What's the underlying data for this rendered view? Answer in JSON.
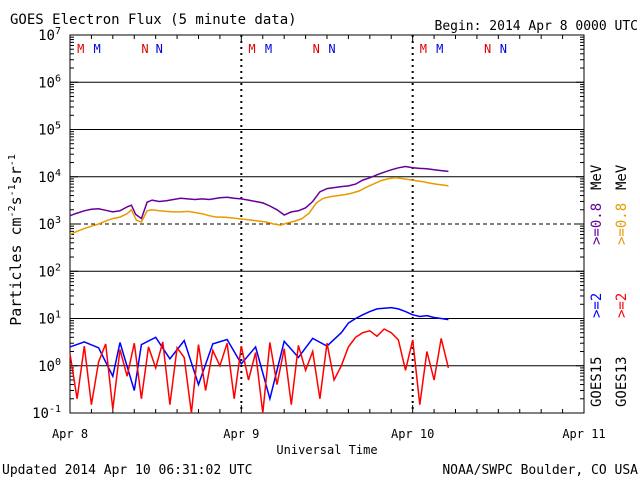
{
  "chart_data": {
    "type": "line",
    "title": "GOES Electron Flux (5 minute data)",
    "begin": "Begin: 2014 Apr 8 0000 UTC",
    "xlabel": "Universal Time",
    "ylabel_parts": [
      "Particles cm",
      "-2",
      "s",
      "-1",
      "sr",
      "-1"
    ],
    "y_scale": "log",
    "ylim": [
      0.1,
      10000000
    ],
    "y_ticks": [
      {
        "base": "10",
        "exp": "-1"
      },
      {
        "base": "10",
        "exp": "0"
      },
      {
        "base": "10",
        "exp": "1"
      },
      {
        "base": "10",
        "exp": "2"
      },
      {
        "base": "10",
        "exp": "3"
      },
      {
        "base": "10",
        "exp": "4"
      },
      {
        "base": "10",
        "exp": "5"
      },
      {
        "base": "10",
        "exp": "6"
      },
      {
        "base": "10",
        "exp": "7"
      }
    ],
    "x_range_hours": [
      0,
      72
    ],
    "x_ticks": [
      "Apr 8",
      "Apr 9",
      "Apr 10",
      "Apr 11"
    ],
    "grid": true,
    "threshold_flux": 1000,
    "markers": [
      {
        "label": "M",
        "hour": 1.5,
        "color": "#dd0000"
      },
      {
        "label": "M",
        "hour": 3.8,
        "color": "#0000dd"
      },
      {
        "label": "N",
        "hour": 10.5,
        "color": "#dd0000"
      },
      {
        "label": "N",
        "hour": 12.5,
        "color": "#0000dd"
      },
      {
        "label": "M",
        "hour": 25.5,
        "color": "#dd0000"
      },
      {
        "label": "M",
        "hour": 27.8,
        "color": "#0000dd"
      },
      {
        "label": "N",
        "hour": 34.5,
        "color": "#dd0000"
      },
      {
        "label": "N",
        "hour": 36.7,
        "color": "#0000dd"
      },
      {
        "label": "M",
        "hour": 49.5,
        "color": "#dd0000"
      },
      {
        "label": "M",
        "hour": 51.8,
        "color": "#0000dd"
      },
      {
        "label": "N",
        "hour": 58.5,
        "color": "#dd0000"
      },
      {
        "label": "N",
        "hour": 60.7,
        "color": "#0000dd"
      }
    ],
    "series": [
      {
        "name": "GOES15 >=0.8 MeV",
        "color": "#660099",
        "points": [
          [
            0,
            1500
          ],
          [
            1,
            1700
          ],
          [
            2,
            1900
          ],
          [
            3,
            2050
          ],
          [
            4,
            2100
          ],
          [
            5,
            1950
          ],
          [
            6,
            1800
          ],
          [
            7,
            1900
          ],
          [
            8,
            2300
          ],
          [
            8.6,
            2500
          ],
          [
            9.2,
            1600
          ],
          [
            10,
            1300
          ],
          [
            10.8,
            2900
          ],
          [
            11.5,
            3200
          ],
          [
            12.5,
            3000
          ],
          [
            13.5,
            3100
          ],
          [
            14.5,
            3300
          ],
          [
            15.5,
            3500
          ],
          [
            16.5,
            3400
          ],
          [
            17.5,
            3300
          ],
          [
            18.5,
            3400
          ],
          [
            19.5,
            3300
          ],
          [
            21,
            3600
          ],
          [
            22,
            3700
          ],
          [
            23,
            3500
          ],
          [
            24,
            3400
          ],
          [
            25,
            3200
          ],
          [
            26,
            3000
          ],
          [
            27,
            2800
          ],
          [
            28,
            2400
          ],
          [
            29,
            2000
          ],
          [
            30,
            1550
          ],
          [
            31,
            1800
          ],
          [
            32,
            1900
          ],
          [
            33,
            2200
          ],
          [
            34,
            3000
          ],
          [
            35,
            4800
          ],
          [
            36,
            5600
          ],
          [
            37,
            5900
          ],
          [
            38,
            6200
          ],
          [
            39,
            6400
          ],
          [
            40,
            7000
          ],
          [
            41,
            8500
          ],
          [
            42,
            9500
          ],
          [
            43,
            11000
          ],
          [
            44,
            12500
          ],
          [
            45,
            14000
          ],
          [
            46,
            15500
          ],
          [
            47,
            16500
          ],
          [
            48,
            15500
          ],
          [
            49,
            15000
          ],
          [
            50,
            14800
          ],
          [
            51,
            14000
          ],
          [
            52,
            13500
          ],
          [
            53,
            13000
          ]
        ]
      },
      {
        "name": "GOES13 >=0.8 MeV",
        "color": "#e89a00",
        "points": [
          [
            0,
            600
          ],
          [
            1,
            700
          ],
          [
            2,
            800
          ],
          [
            3,
            900
          ],
          [
            4,
            1000
          ],
          [
            5,
            1150
          ],
          [
            6,
            1300
          ],
          [
            7,
            1400
          ],
          [
            8,
            1650
          ],
          [
            8.6,
            2000
          ],
          [
            9.3,
            1200
          ],
          [
            10,
            1100
          ],
          [
            10.8,
            1900
          ],
          [
            11.5,
            2000
          ],
          [
            12.5,
            1900
          ],
          [
            13.5,
            1850
          ],
          [
            14.5,
            1800
          ],
          [
            15.5,
            1800
          ],
          [
            16.5,
            1850
          ],
          [
            17.5,
            1750
          ],
          [
            18.5,
            1650
          ],
          [
            19.5,
            1500
          ],
          [
            20.5,
            1400
          ],
          [
            21.5,
            1400
          ],
          [
            22.5,
            1350
          ],
          [
            23.5,
            1300
          ],
          [
            24.5,
            1250
          ],
          [
            25.5,
            1200
          ],
          [
            26.5,
            1150
          ],
          [
            27.5,
            1100
          ],
          [
            28.5,
            1000
          ],
          [
            29.5,
            950
          ],
          [
            30.5,
            1050
          ],
          [
            31.5,
            1150
          ],
          [
            32.5,
            1300
          ],
          [
            33.5,
            1700
          ],
          [
            34.5,
            2800
          ],
          [
            35.5,
            3500
          ],
          [
            36.5,
            3800
          ],
          [
            37.5,
            4000
          ],
          [
            38.5,
            4200
          ],
          [
            39.5,
            4500
          ],
          [
            40.5,
            5000
          ],
          [
            41.5,
            6000
          ],
          [
            42.5,
            7000
          ],
          [
            43.5,
            8200
          ],
          [
            44.5,
            9000
          ],
          [
            45.5,
            9500
          ],
          [
            46.5,
            9200
          ],
          [
            47.5,
            8700
          ],
          [
            48.5,
            8200
          ],
          [
            49.5,
            7800
          ],
          [
            50.5,
            7300
          ],
          [
            51.5,
            6900
          ],
          [
            52.5,
            6600
          ],
          [
            53,
            6400
          ]
        ]
      },
      {
        "name": "GOES15 >=2 MeV",
        "color": "#0000ff",
        "points": [
          [
            0,
            2.5
          ],
          [
            2,
            3.2
          ],
          [
            4,
            2.4
          ],
          [
            6,
            0.6
          ],
          [
            7,
            3.1
          ],
          [
            9,
            0.3
          ],
          [
            10,
            2.8
          ],
          [
            12,
            4.0
          ],
          [
            14,
            1.4
          ],
          [
            16,
            3.4
          ],
          [
            18,
            0.4
          ],
          [
            20,
            2.9
          ],
          [
            22,
            3.6
          ],
          [
            24,
            1.1
          ],
          [
            26,
            2.5
          ],
          [
            28,
            0.2
          ],
          [
            30,
            3.3
          ],
          [
            32,
            1.5
          ],
          [
            34,
            3.8
          ],
          [
            36,
            2.6
          ],
          [
            38,
            5.0
          ],
          [
            39,
            8.0
          ],
          [
            40,
            10.0
          ],
          [
            41,
            12.0
          ],
          [
            42,
            14.0
          ],
          [
            43,
            16.0
          ],
          [
            44,
            16.5
          ],
          [
            45,
            17.0
          ],
          [
            46,
            16.0
          ],
          [
            47,
            14.0
          ],
          [
            48,
            12.0
          ],
          [
            49,
            11.0
          ],
          [
            50,
            11.5
          ],
          [
            51,
            10.5
          ],
          [
            52,
            10.0
          ],
          [
            53,
            9.5
          ]
        ]
      },
      {
        "name": "GOES13 >=2 MeV",
        "color": "#ff0000",
        "points": [
          [
            0,
            1.8
          ],
          [
            1,
            0.2
          ],
          [
            2,
            2.6
          ],
          [
            3,
            0.15
          ],
          [
            4,
            1.2
          ],
          [
            5,
            2.9
          ],
          [
            6,
            0.12
          ],
          [
            7,
            2.2
          ],
          [
            8,
            0.6
          ],
          [
            9,
            3.0
          ],
          [
            10,
            0.2
          ],
          [
            11,
            2.5
          ],
          [
            12,
            0.9
          ],
          [
            13,
            3.2
          ],
          [
            14,
            0.15
          ],
          [
            15,
            2.4
          ],
          [
            16,
            1.5
          ],
          [
            17,
            0.1
          ],
          [
            18,
            2.8
          ],
          [
            19,
            0.3
          ],
          [
            20,
            2.1
          ],
          [
            21,
            1.0
          ],
          [
            22,
            3.0
          ],
          [
            23,
            0.2
          ],
          [
            24,
            2.6
          ],
          [
            25,
            0.5
          ],
          [
            26,
            1.9
          ],
          [
            27,
            0.1
          ],
          [
            28,
            3.1
          ],
          [
            29,
            0.4
          ],
          [
            30,
            2.3
          ],
          [
            31,
            0.15
          ],
          [
            32,
            2.7
          ],
          [
            33,
            0.8
          ],
          [
            34,
            2.0
          ],
          [
            35,
            0.2
          ],
          [
            36,
            3.0
          ],
          [
            37,
            0.5
          ],
          [
            38,
            1.0
          ],
          [
            39,
            2.5
          ],
          [
            40,
            4.0
          ],
          [
            41,
            5.0
          ],
          [
            42,
            5.5
          ],
          [
            43,
            4.2
          ],
          [
            44,
            6.0
          ],
          [
            45,
            5.0
          ],
          [
            46,
            3.5
          ],
          [
            47,
            0.8
          ],
          [
            48,
            3.5
          ],
          [
            49,
            0.15
          ],
          [
            50,
            2.0
          ],
          [
            51,
            0.5
          ],
          [
            52,
            3.8
          ],
          [
            53,
            0.9
          ]
        ]
      }
    ],
    "side_legend": [
      {
        "text": "GOES15",
        "color": "#000000"
      },
      {
        "text": "GOES13",
        "color": "#000000"
      },
      {
        "text": ">=2",
        "color": "#0000ff"
      },
      {
        "text": ">=2",
        "color": "#ff0000"
      },
      {
        "text": ">=0.8",
        "color": "#660099"
      },
      {
        "text": ">=0.8",
        "color": "#e89a00"
      },
      {
        "text": "MeV",
        "color": "#000000"
      },
      {
        "text": "MeV",
        "color": "#000000"
      }
    ]
  },
  "footer": {
    "updated": "Updated 2014 Apr 10 06:31:02 UTC",
    "credit": "NOAA/SWPC Boulder, CO USA"
  }
}
